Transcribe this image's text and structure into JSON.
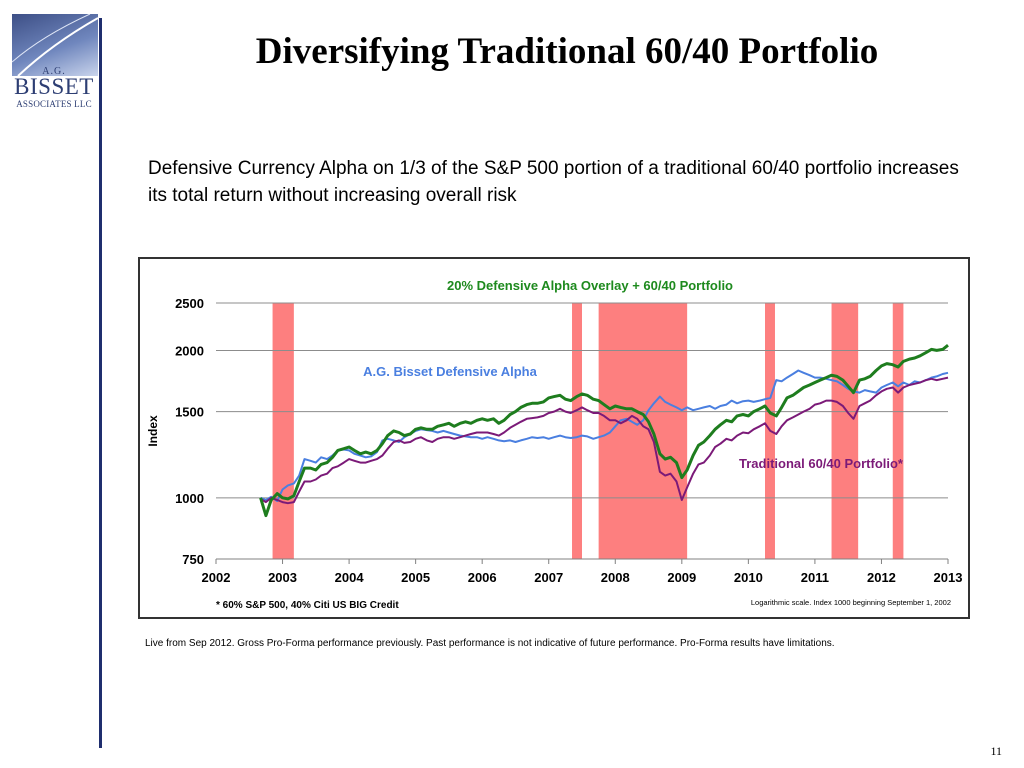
{
  "logo": {
    "line1": "A.G.",
    "line2": "BISSET",
    "line3": "ASSOCIATES LLC"
  },
  "title": "Diversifying Traditional 60/40 Portfolio",
  "subtitle": "Defensive Currency Alpha on 1/3 of the S&P 500 portion of a traditional 60/40 portfolio increases its total return without increasing overall risk",
  "footnote": "Live from Sep 2012. Gross Pro-Forma performance previously. Past performance is not indicative of future performance. Pro-Forma results have limitations.",
  "page_number": "11",
  "chart_data": {
    "type": "line",
    "title": "20% Defensive Alpha Overlay + 60/40 Portfolio",
    "ylabel": "Index",
    "xlabel": "",
    "y_scale": "log",
    "ylim": [
      750,
      2500
    ],
    "xlim": [
      2002,
      2013
    ],
    "yticks": [
      750,
      1000,
      1500,
      2000,
      2500
    ],
    "xticks": [
      2002,
      2003,
      2004,
      2005,
      2006,
      2007,
      2008,
      2009,
      2010,
      2011,
      2012,
      2013
    ],
    "grid": "horizontal",
    "note_left": "* 60% S&P 500, 40% Citi US BIG Credit",
    "note_right": "Logarithmic scale. Index 1000 beginning September 1, 2002",
    "shaded_periods": [
      [
        2002.85,
        2003.17
      ],
      [
        2007.35,
        2007.5
      ],
      [
        2007.75,
        2009.08
      ],
      [
        2010.25,
        2010.4
      ],
      [
        2011.25,
        2011.65
      ],
      [
        2012.17,
        2012.33
      ]
    ],
    "shaded_color": "#fd7f7f",
    "series": [
      {
        "name": "A.G. Bisset Defensive Alpha",
        "color": "#4a7fe0",
        "x": [
          2002.67,
          2002.75,
          2002.83,
          2002.92,
          2003.0,
          2003.08,
          2003.17,
          2003.25,
          2003.33,
          2003.42,
          2003.5,
          2003.58,
          2003.67,
          2003.75,
          2003.83,
          2003.92,
          2004.0,
          2004.08,
          2004.17,
          2004.25,
          2004.33,
          2004.42,
          2004.5,
          2004.58,
          2004.67,
          2004.75,
          2004.83,
          2004.92,
          2005.0,
          2005.08,
          2005.17,
          2005.25,
          2005.33,
          2005.42,
          2005.5,
          2005.58,
          2005.67,
          2005.75,
          2005.83,
          2005.92,
          2006.0,
          2006.08,
          2006.17,
          2006.25,
          2006.33,
          2006.42,
          2006.5,
          2006.58,
          2006.67,
          2006.75,
          2006.83,
          2006.92,
          2007.0,
          2007.08,
          2007.17,
          2007.25,
          2007.33,
          2007.42,
          2007.5,
          2007.58,
          2007.67,
          2007.75,
          2007.83,
          2007.92,
          2008.0,
          2008.08,
          2008.17,
          2008.25,
          2008.33,
          2008.42,
          2008.5,
          2008.58,
          2008.67,
          2008.75,
          2008.83,
          2008.92,
          2009.0,
          2009.08,
          2009.17,
          2009.25,
          2009.33,
          2009.42,
          2009.5,
          2009.58,
          2009.67,
          2009.75,
          2009.83,
          2009.92,
          2010.0,
          2010.08,
          2010.17,
          2010.25,
          2010.33,
          2010.42,
          2010.5,
          2010.58,
          2010.67,
          2010.75,
          2010.83,
          2010.92,
          2011.0,
          2011.08,
          2011.17,
          2011.25,
          2011.33,
          2011.42,
          2011.5,
          2011.58,
          2011.67,
          2011.75,
          2011.83,
          2011.92,
          2012.0,
          2012.08,
          2012.17,
          2012.25,
          2012.33,
          2012.42,
          2012.5,
          2012.58,
          2012.67,
          2012.75,
          2012.83,
          2012.92,
          2013.0
        ],
        "values": [
          1000,
          990,
          1005,
          985,
          1040,
          1060,
          1070,
          1110,
          1200,
          1190,
          1180,
          1210,
          1200,
          1220,
          1250,
          1255,
          1250,
          1230,
          1220,
          1210,
          1215,
          1240,
          1310,
          1320,
          1310,
          1300,
          1330,
          1350,
          1370,
          1380,
          1375,
          1370,
          1360,
          1370,
          1360,
          1350,
          1340,
          1335,
          1330,
          1330,
          1320,
          1330,
          1320,
          1310,
          1305,
          1310,
          1300,
          1310,
          1320,
          1330,
          1325,
          1330,
          1320,
          1330,
          1340,
          1330,
          1325,
          1330,
          1340,
          1335,
          1320,
          1330,
          1340,
          1360,
          1400,
          1440,
          1450,
          1430,
          1410,
          1440,
          1510,
          1560,
          1610,
          1570,
          1550,
          1530,
          1510,
          1530,
          1510,
          1520,
          1530,
          1540,
          1520,
          1540,
          1550,
          1580,
          1560,
          1575,
          1580,
          1570,
          1580,
          1590,
          1600,
          1740,
          1730,
          1760,
          1790,
          1820,
          1800,
          1780,
          1760,
          1760,
          1750,
          1740,
          1730,
          1700,
          1670,
          1650,
          1640,
          1660,
          1650,
          1640,
          1680,
          1700,
          1720,
          1690,
          1720,
          1700,
          1730,
          1720,
          1740,
          1760,
          1770,
          1790,
          1800
        ]
      },
      {
        "name": "Traditional 60/40 Portfolio*",
        "color": "#7b1a78",
        "x": [
          2002.67,
          2002.75,
          2002.83,
          2002.92,
          2003.0,
          2003.08,
          2003.17,
          2003.25,
          2003.33,
          2003.42,
          2003.5,
          2003.58,
          2003.67,
          2003.75,
          2003.83,
          2003.92,
          2004.0,
          2004.08,
          2004.17,
          2004.25,
          2004.33,
          2004.42,
          2004.5,
          2004.58,
          2004.67,
          2004.75,
          2004.83,
          2004.92,
          2005.0,
          2005.08,
          2005.17,
          2005.25,
          2005.33,
          2005.42,
          2005.5,
          2005.58,
          2005.67,
          2005.75,
          2005.83,
          2005.92,
          2006.0,
          2006.08,
          2006.17,
          2006.25,
          2006.33,
          2006.42,
          2006.5,
          2006.58,
          2006.67,
          2006.75,
          2006.83,
          2006.92,
          2007.0,
          2007.08,
          2007.17,
          2007.25,
          2007.33,
          2007.42,
          2007.5,
          2007.58,
          2007.67,
          2007.75,
          2007.83,
          2007.92,
          2008.0,
          2008.08,
          2008.17,
          2008.25,
          2008.33,
          2008.42,
          2008.5,
          2008.58,
          2008.67,
          2008.75,
          2008.83,
          2008.92,
          2009.0,
          2009.08,
          2009.17,
          2009.25,
          2009.33,
          2009.42,
          2009.5,
          2009.58,
          2009.67,
          2009.75,
          2009.83,
          2009.92,
          2010.0,
          2010.08,
          2010.17,
          2010.25,
          2010.33,
          2010.42,
          2010.5,
          2010.58,
          2010.67,
          2010.75,
          2010.83,
          2010.92,
          2011.0,
          2011.08,
          2011.17,
          2011.25,
          2011.33,
          2011.42,
          2011.5,
          2011.58,
          2011.67,
          2011.75,
          2011.83,
          2011.92,
          2012.0,
          2012.08,
          2012.17,
          2012.25,
          2012.33,
          2012.42,
          2012.5,
          2012.58,
          2012.67,
          2012.75,
          2012.83,
          2012.92,
          2013.0
        ],
        "values": [
          995,
          980,
          1000,
          990,
          980,
          975,
          980,
          1030,
          1080,
          1080,
          1090,
          1110,
          1120,
          1150,
          1160,
          1180,
          1200,
          1190,
          1180,
          1180,
          1190,
          1200,
          1220,
          1260,
          1300,
          1310,
          1295,
          1300,
          1320,
          1330,
          1310,
          1300,
          1320,
          1330,
          1330,
          1320,
          1330,
          1340,
          1350,
          1360,
          1360,
          1360,
          1350,
          1340,
          1360,
          1390,
          1410,
          1430,
          1450,
          1455,
          1460,
          1470,
          1490,
          1500,
          1520,
          1500,
          1490,
          1510,
          1530,
          1510,
          1490,
          1490,
          1470,
          1440,
          1440,
          1420,
          1440,
          1470,
          1450,
          1400,
          1380,
          1300,
          1130,
          1110,
          1120,
          1080,
          990,
          1050,
          1120,
          1170,
          1180,
          1220,
          1270,
          1290,
          1320,
          1310,
          1340,
          1360,
          1355,
          1380,
          1400,
          1420,
          1370,
          1350,
          1400,
          1440,
          1460,
          1480,
          1500,
          1520,
          1550,
          1560,
          1580,
          1580,
          1570,
          1540,
          1490,
          1450,
          1540,
          1560,
          1580,
          1620,
          1650,
          1670,
          1680,
          1640,
          1680,
          1700,
          1710,
          1720,
          1740,
          1750,
          1740,
          1750,
          1760
        ]
      },
      {
        "name": "",
        "color": "#1e7d1e",
        "x": [
          2002.67,
          2002.75,
          2002.83,
          2002.92,
          2003.0,
          2003.08,
          2003.17,
          2003.25,
          2003.33,
          2003.42,
          2003.5,
          2003.58,
          2003.67,
          2003.75,
          2003.83,
          2003.92,
          2004.0,
          2004.08,
          2004.17,
          2004.25,
          2004.33,
          2004.42,
          2004.5,
          2004.58,
          2004.67,
          2004.75,
          2004.83,
          2004.92,
          2005.0,
          2005.08,
          2005.17,
          2005.25,
          2005.33,
          2005.42,
          2005.5,
          2005.58,
          2005.67,
          2005.75,
          2005.83,
          2005.92,
          2006.0,
          2006.08,
          2006.17,
          2006.25,
          2006.33,
          2006.42,
          2006.5,
          2006.58,
          2006.67,
          2006.75,
          2006.83,
          2006.92,
          2007.0,
          2007.08,
          2007.17,
          2007.25,
          2007.33,
          2007.42,
          2007.5,
          2007.58,
          2007.67,
          2007.75,
          2007.83,
          2007.92,
          2008.0,
          2008.08,
          2008.17,
          2008.25,
          2008.33,
          2008.42,
          2008.5,
          2008.58,
          2008.67,
          2008.75,
          2008.83,
          2008.92,
          2009.0,
          2009.08,
          2009.17,
          2009.25,
          2009.33,
          2009.42,
          2009.5,
          2009.58,
          2009.67,
          2009.75,
          2009.83,
          2009.92,
          2010.0,
          2010.08,
          2010.17,
          2010.25,
          2010.33,
          2010.42,
          2010.5,
          2010.58,
          2010.67,
          2010.75,
          2010.83,
          2010.92,
          2011.0,
          2011.08,
          2011.17,
          2011.25,
          2011.33,
          2011.42,
          2011.5,
          2011.58,
          2011.67,
          2011.75,
          2011.83,
          2011.92,
          2012.0,
          2012.08,
          2012.17,
          2012.25,
          2012.33,
          2012.42,
          2012.5,
          2012.58,
          2012.67,
          2012.75,
          2012.83,
          2012.92,
          2013.0
        ],
        "values": [
          1000,
          920,
          990,
          1020,
          1000,
          995,
          1010,
          1080,
          1150,
          1150,
          1140,
          1170,
          1180,
          1210,
          1250,
          1260,
          1270,
          1250,
          1230,
          1240,
          1230,
          1250,
          1290,
          1340,
          1370,
          1360,
          1340,
          1350,
          1380,
          1390,
          1380,
          1380,
          1400,
          1410,
          1420,
          1400,
          1420,
          1430,
          1420,
          1440,
          1450,
          1440,
          1450,
          1420,
          1440,
          1480,
          1500,
          1530,
          1550,
          1560,
          1560,
          1570,
          1600,
          1610,
          1620,
          1590,
          1580,
          1610,
          1630,
          1620,
          1590,
          1580,
          1550,
          1520,
          1540,
          1530,
          1520,
          1520,
          1500,
          1480,
          1430,
          1350,
          1230,
          1200,
          1210,
          1180,
          1100,
          1140,
          1220,
          1280,
          1300,
          1340,
          1380,
          1410,
          1440,
          1430,
          1470,
          1480,
          1470,
          1500,
          1520,
          1540,
          1490,
          1470,
          1530,
          1600,
          1620,
          1650,
          1680,
          1700,
          1720,
          1740,
          1760,
          1780,
          1770,
          1740,
          1690,
          1640,
          1740,
          1750,
          1770,
          1820,
          1860,
          1880,
          1870,
          1850,
          1900,
          1920,
          1930,
          1950,
          1980,
          2010,
          2000,
          2010,
          2050
        ]
      }
    ],
    "annotations": [
      {
        "text": "A.G. Bisset Defensive Alpha",
        "color": "#4a7fe0"
      },
      {
        "text": "Traditional 60/40 Portfolio*",
        "color": "#7b1a78"
      }
    ]
  }
}
